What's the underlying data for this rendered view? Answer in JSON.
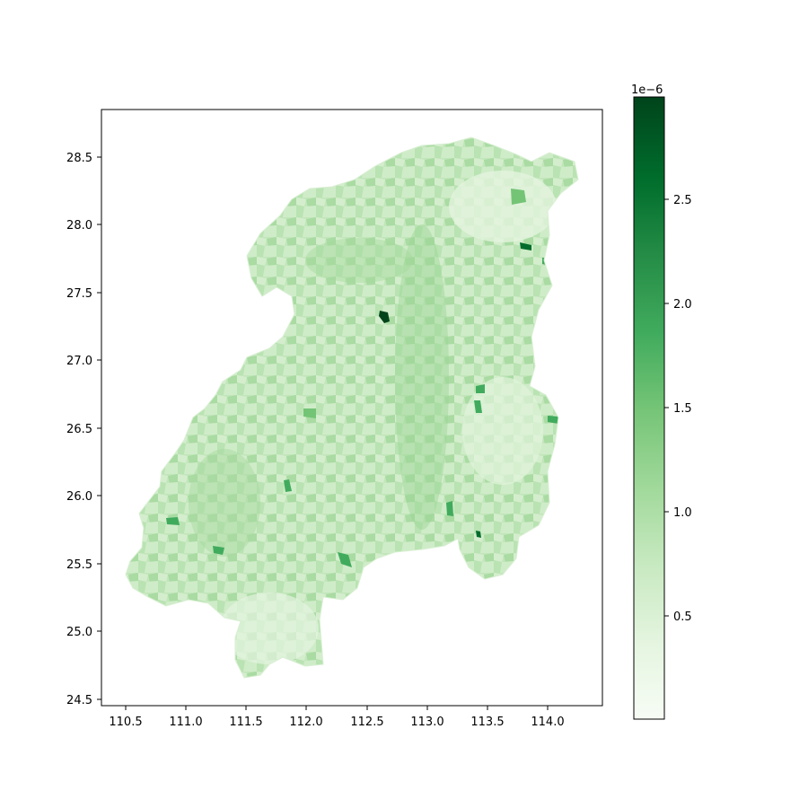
{
  "map": {
    "type": "choropleth",
    "colormap": "Greens",
    "x_ticks": [
      "110.5",
      "111.0",
      "111.5",
      "112.0",
      "112.5",
      "113.0",
      "113.5",
      "114.0"
    ],
    "y_ticks": [
      "28.5",
      "28.0",
      "27.5",
      "27.0",
      "26.5",
      "26.0",
      "25.5",
      "25.0",
      "24.5"
    ],
    "x_range": [
      110.32,
      114.45
    ],
    "y_range": [
      24.43,
      28.85
    ],
    "grid": false
  },
  "colorbar": {
    "offset_label": "1e−6",
    "ticks": [
      "2.5",
      "2.0",
      "1.5",
      "1.0",
      "0.5"
    ],
    "range": [
      0.02,
      2.98
    ],
    "low_color": "#f7fcf5",
    "high_color": "#00441b"
  },
  "chart_data": {
    "type": "heatmap",
    "xlabel": "",
    "ylabel": "",
    "xlim": [
      110.32,
      114.45
    ],
    "ylim": [
      24.43,
      28.85
    ],
    "value_scale": "1e-6",
    "value_range": [
      2e-08,
      2.98e-06
    ],
    "colormap": "Greens"
  }
}
